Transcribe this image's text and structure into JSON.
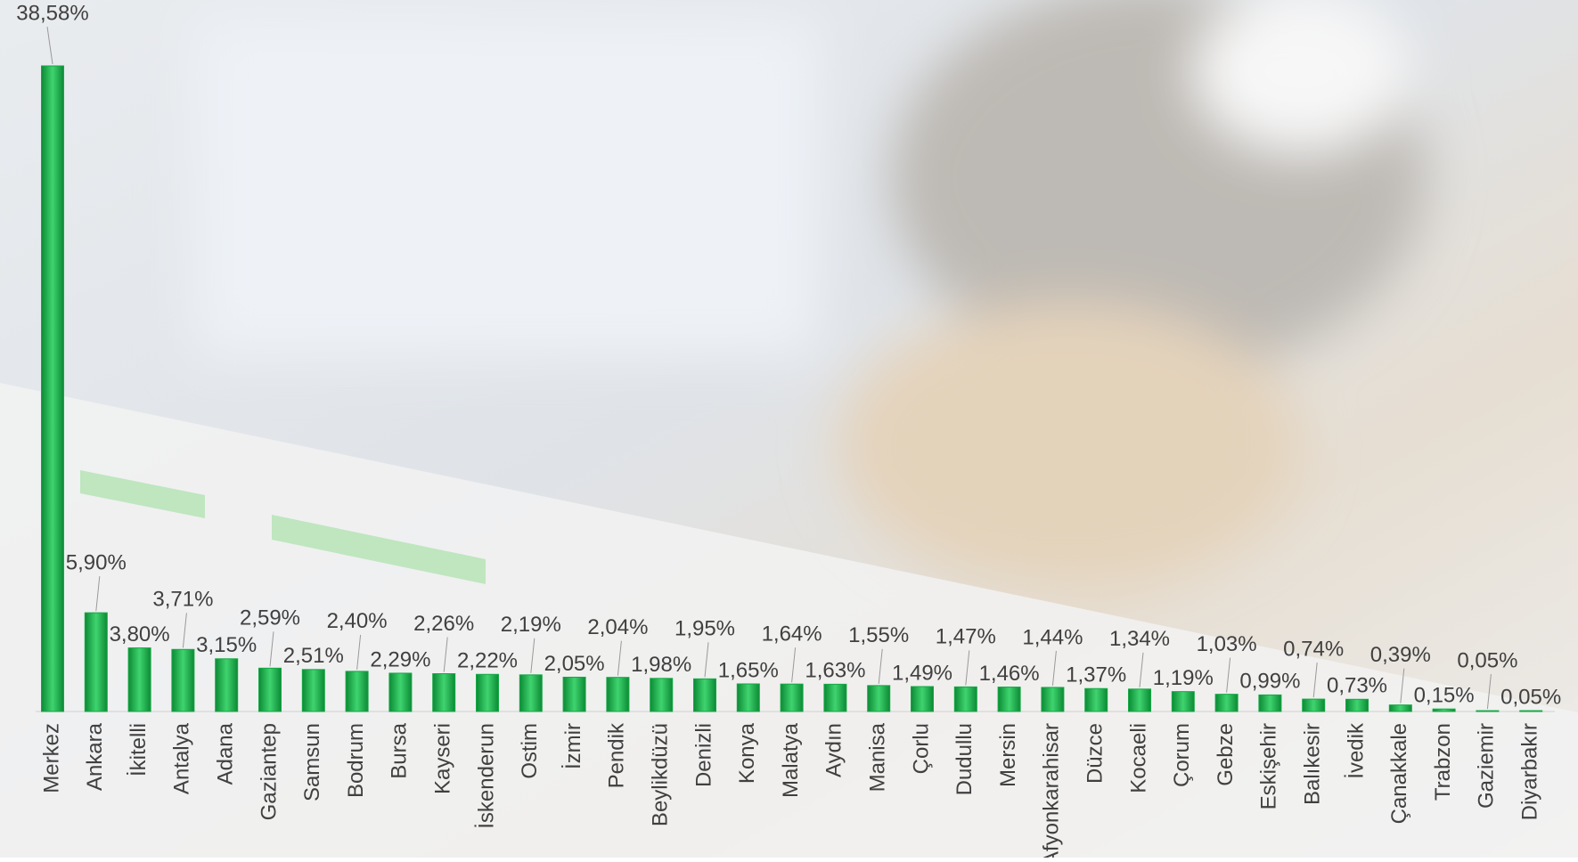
{
  "chart_data": {
    "type": "bar",
    "categories": [
      "Merkez",
      "Ankara",
      "İkitelli",
      "Antalya",
      "Adana",
      "Gaziantep",
      "Samsun",
      "Bodrum",
      "Bursa",
      "Kayseri",
      "İskenderun",
      "Ostim",
      "İzmir",
      "Pendik",
      "Beylikdüzü",
      "Denizli",
      "Konya",
      "Malatya",
      "Aydın",
      "Manisa",
      "Çorlu",
      "Dudullu",
      "Mersin",
      "Afyonkarahisar",
      "Düzce",
      "Kocaeli",
      "Çorum",
      "Gebze",
      "Eskişehir",
      "Balıkesir",
      "İvedik",
      "Çanakkale",
      "Trabzon",
      "Gaziemir",
      "Diyarbakır"
    ],
    "values": [
      38.58,
      5.9,
      3.8,
      3.71,
      3.15,
      2.59,
      2.51,
      2.4,
      2.29,
      2.26,
      2.22,
      2.19,
      2.05,
      2.04,
      1.98,
      1.95,
      1.65,
      1.64,
      1.63,
      1.55,
      1.49,
      1.47,
      1.46,
      1.44,
      1.37,
      1.34,
      1.19,
      1.03,
      0.99,
      0.74,
      0.73,
      0.39,
      0.15,
      0.05,
      0.05
    ],
    "value_labels": [
      "38,58%",
      "5,90%",
      "3,80%",
      "3,71%",
      "3,15%",
      "2,59%",
      "2,51%",
      "2,40%",
      "2,29%",
      "2,26%",
      "2,22%",
      "2,19%",
      "2,05%",
      "2,04%",
      "1,98%",
      "1,95%",
      "1,65%",
      "1,64%",
      "1,63%",
      "1,55%",
      "1,49%",
      "1,47%",
      "1,46%",
      "1,44%",
      "1,37%",
      "1,34%",
      "1,19%",
      "1,03%",
      "0,99%",
      "0,74%",
      "0,73%",
      "0,39%",
      "0,15%",
      "0,05%",
      "0,05%"
    ],
    "color": "#14a844"
  }
}
